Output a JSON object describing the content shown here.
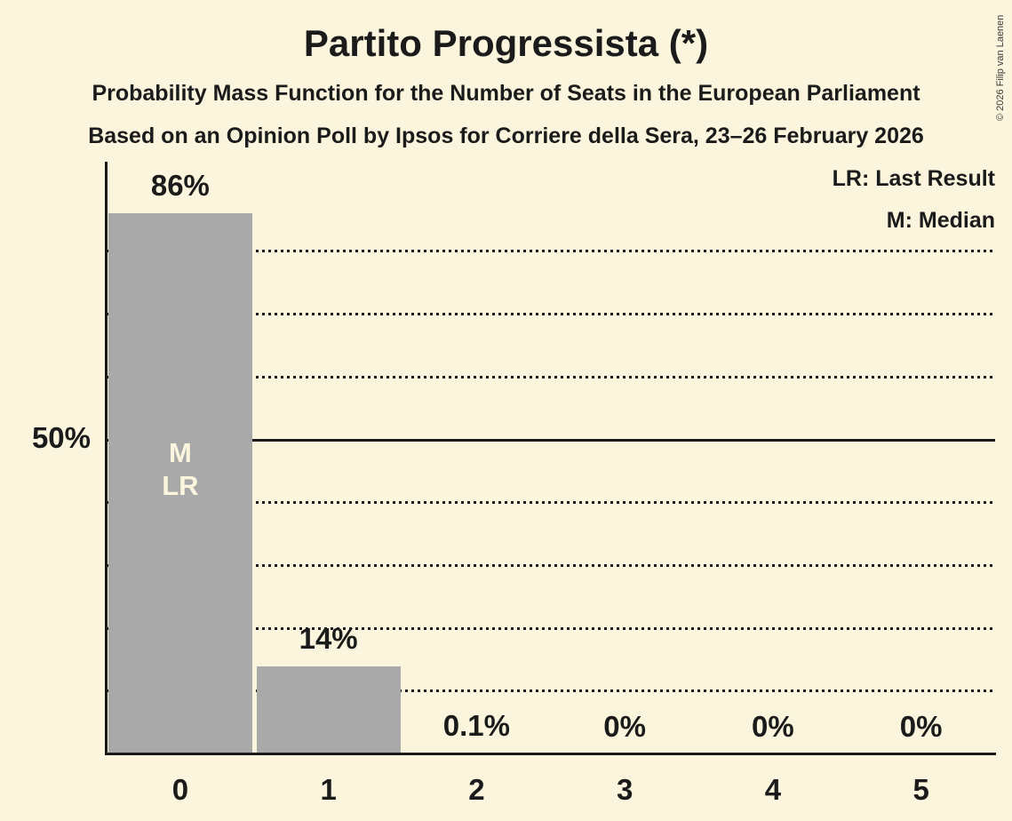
{
  "header": {
    "title": "Partito Progressista (*)",
    "subtitle": "Probability Mass Function for the Number of Seats in the European Parliament",
    "subsubtitle": "Based on an Opinion Poll by Ipsos for Corriere della Sera, 23–26 February 2026"
  },
  "legend": {
    "items": [
      {
        "label": "LR: Last Result"
      },
      {
        "label": "M: Median"
      }
    ]
  },
  "copyright": "© 2026 Filip van Laenen",
  "y_axis": {
    "tick_label": "50%",
    "tick_value": 50
  },
  "chart_data": {
    "type": "bar",
    "title": "Partito Progressista (*)",
    "categories": [
      "0",
      "1",
      "2",
      "3",
      "4",
      "5"
    ],
    "values": [
      86,
      14,
      0.1,
      0,
      0,
      0
    ],
    "bar_labels": [
      "86%",
      "14%",
      "0.1%",
      "0%",
      "0%",
      "0%"
    ],
    "ylim": [
      0,
      94
    ],
    "grid": "horizontal",
    "gridlines": {
      "dotted_pct": [
        10,
        20,
        30,
        40,
        60,
        70,
        80
      ],
      "solid_pct": 50
    },
    "legend_position": "top-right",
    "annotations": [
      {
        "bar_index": 0,
        "lines": [
          "M",
          "LR"
        ]
      }
    ]
  },
  "colors": {
    "background": "#FAF5DC",
    "bar": "#A9A9A9",
    "text": "#1B1B1B",
    "bar_annotation_text": "#FAF5DC",
    "copyright_text": "#3A3A3A"
  }
}
